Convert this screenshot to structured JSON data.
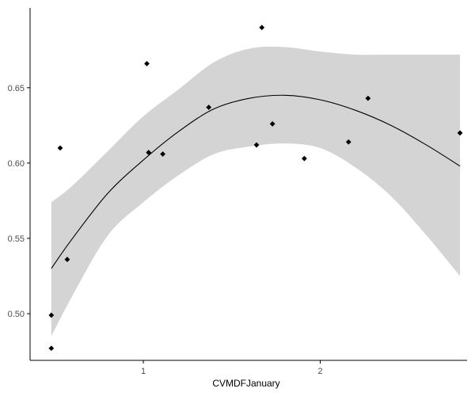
{
  "chart_data": {
    "type": "scatter",
    "title": "",
    "xlabel": "CVMDFJanuary",
    "ylabel": "",
    "xlim": [
      0.36,
      2.83
    ],
    "ylim": [
      0.469,
      0.703
    ],
    "x_ticks": [
      1,
      2
    ],
    "y_ticks": [
      0.5,
      0.55,
      0.6,
      0.65
    ],
    "x_tick_labels": [
      "1",
      "2"
    ],
    "y_tick_labels": [
      "0.50",
      "0.55",
      "0.60",
      "0.65"
    ],
    "grid": false,
    "legend": "none",
    "points": {
      "x": [
        0.48,
        0.48,
        0.53,
        0.57,
        1.02,
        1.03,
        1.11,
        1.37,
        1.64,
        1.67,
        1.73,
        1.91,
        2.16,
        2.27,
        2.79
      ],
      "y": [
        0.499,
        0.477,
        0.61,
        0.536,
        0.666,
        0.607,
        0.606,
        0.637,
        0.612,
        0.69,
        0.626,
        0.603,
        0.614,
        0.643,
        0.62
      ]
    },
    "smooth": {
      "method": "loess",
      "x": [
        0.48,
        0.6,
        0.8,
        1.0,
        1.2,
        1.4,
        1.6,
        1.8,
        2.0,
        2.2,
        2.4,
        2.6,
        2.79
      ],
      "y": [
        0.53,
        0.55,
        0.58,
        0.602,
        0.621,
        0.636,
        0.643,
        0.645,
        0.642,
        0.635,
        0.625,
        0.612,
        0.598
      ],
      "ci_upper": [
        0.574,
        0.585,
        0.608,
        0.631,
        0.649,
        0.667,
        0.676,
        0.677,
        0.674,
        0.672,
        0.672,
        0.672,
        0.672
      ],
      "ci_lower": [
        0.485,
        0.512,
        0.552,
        0.574,
        0.592,
        0.606,
        0.611,
        0.613,
        0.61,
        0.597,
        0.578,
        0.552,
        0.525
      ]
    },
    "colors": {
      "points": "#000000",
      "line": "#000000",
      "ribbon": "#d4d4d4",
      "axis": "#000000"
    }
  }
}
